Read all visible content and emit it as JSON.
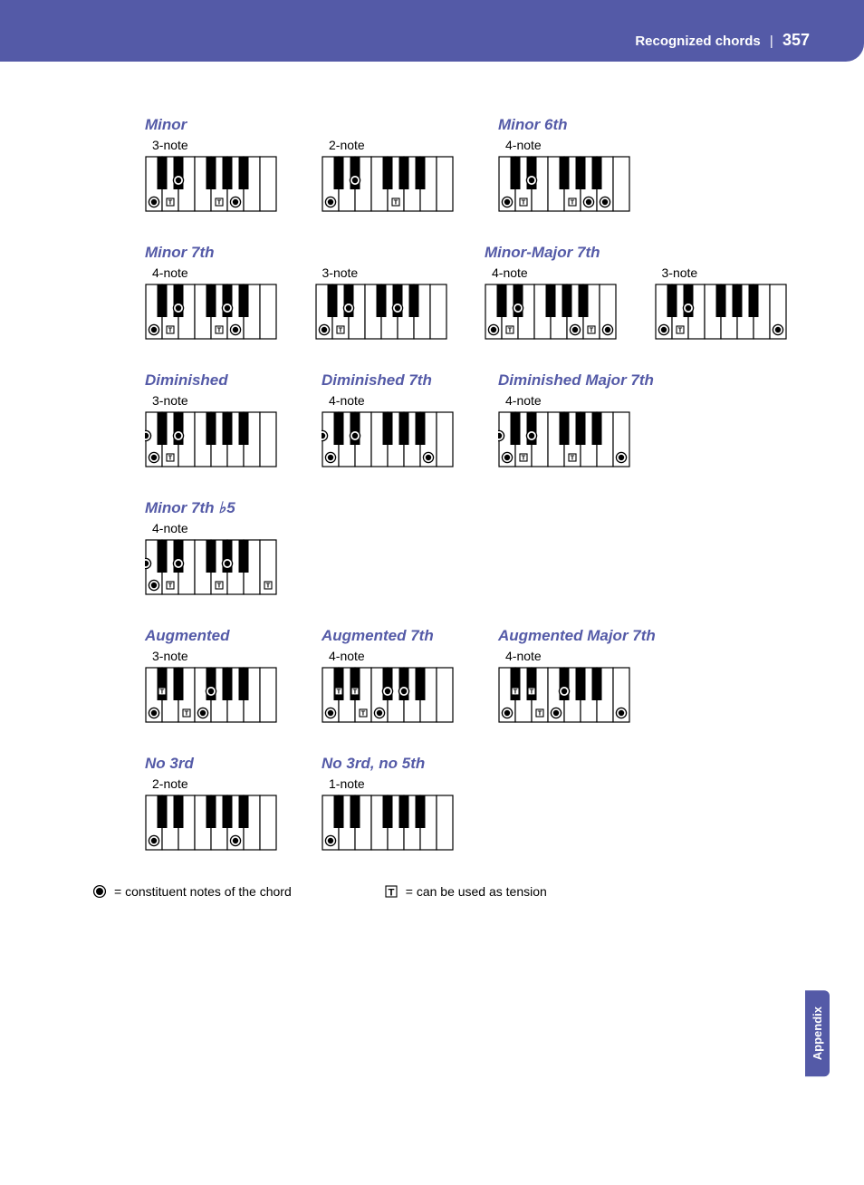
{
  "header": {
    "title": "Recognized chords",
    "page": "357"
  },
  "sideTab": "Appendix",
  "legend": {
    "constituent": "= constituent notes of the chord",
    "tension": "= can be used as tension"
  },
  "layout": [
    [
      {
        "title": "Minor",
        "count": "3-note",
        "white": {
          "0": "d",
          "1": "t",
          "4": "t",
          "5": "d"
        },
        "black": {
          "1": "d"
        }
      },
      {
        "title": "",
        "count": "2-note",
        "white": {
          "0": "d",
          "4": "t"
        },
        "black": {
          "1": "d"
        }
      },
      {
        "title": "Minor 6th",
        "count": "4-note",
        "white": {
          "0": "d",
          "1": "t",
          "4": "t",
          "5": "d",
          "6": "d"
        },
        "black": {
          "1": "d"
        }
      }
    ],
    [
      {
        "title": "Minor 7th",
        "count": "4-note",
        "white": {
          "0": "d",
          "1": "t",
          "4": "t",
          "5": "d"
        },
        "black": {
          "1": "d",
          "4": "d"
        }
      },
      {
        "title": "",
        "count": "3-note",
        "white": {
          "0": "d",
          "1": "t"
        },
        "black": {
          "1": "d",
          "4": "d"
        }
      },
      {
        "title": "Minor-Major 7th",
        "count": "4-note",
        "white": {
          "0": "d",
          "1": "t",
          "5": "d",
          "6": "t",
          "7": "d"
        },
        "black": {
          "1": "d"
        }
      },
      {
        "title": "",
        "count": "3-note",
        "white": {
          "0": "d",
          "1": "t",
          "7": "d"
        },
        "black": {
          "1": "d"
        }
      }
    ],
    [
      {
        "title": "Diminished",
        "count": "3-note",
        "white": {
          "0": "d",
          "1": "t"
        },
        "black": {
          "1": "d",
          "2": "d"
        }
      },
      {
        "title": "Diminished 7th",
        "count": "4-note",
        "white": {
          "0": "d",
          "6": "d"
        },
        "black": {
          "1": "d",
          "2": "d"
        }
      },
      {
        "title": "Diminished Major 7th",
        "count": "4-note",
        "white": {
          "0": "d",
          "1": "t",
          "4": "t",
          "7": "d"
        },
        "black": {
          "1": "d",
          "2": "d"
        }
      }
    ],
    [
      {
        "title": "Minor 7th ♭5",
        "count": "4-note",
        "white": {
          "0": "d",
          "1": "t",
          "4": "t",
          "7": "t"
        },
        "black": {
          "1": "d",
          "2": "d",
          "4": "d"
        }
      }
    ],
    [
      {
        "title": "Augmented",
        "count": "3-note",
        "white": {
          "0": "d",
          "2": "t",
          "3": "d"
        },
        "black": {
          "0": "t",
          "3": "d"
        }
      },
      {
        "title": "Augmented 7th",
        "count": "4-note",
        "white": {
          "0": "d",
          "2": "t",
          "3": "d"
        },
        "black": {
          "0": "t",
          "1": "t",
          "3": "d",
          "4": "d"
        }
      },
      {
        "title": "Augmented Major 7th",
        "count": "4-note",
        "white": {
          "0": "d",
          "2": "t",
          "3": "d",
          "7": "d"
        },
        "black": {
          "0": "t",
          "1": "t",
          "3": "d"
        }
      }
    ],
    [
      {
        "title": "No 3rd",
        "count": "2-note",
        "white": {
          "0": "d",
          "5": "d"
        },
        "black": {}
      },
      {
        "title": "No 3rd, no 5th",
        "count": "1-note",
        "white": {
          "0": "d"
        },
        "black": {}
      }
    ]
  ],
  "keyboard": {
    "whiteCount": 8,
    "whiteW": 18,
    "whiteH": 60,
    "blackW": 11,
    "blackH": 36,
    "blackPositions": [
      0,
      1,
      3,
      4,
      5
    ],
    "stroke": "#000",
    "dotR": 3.2,
    "tSize": 8,
    "markY_white": 50,
    "markY_black": 26
  }
}
